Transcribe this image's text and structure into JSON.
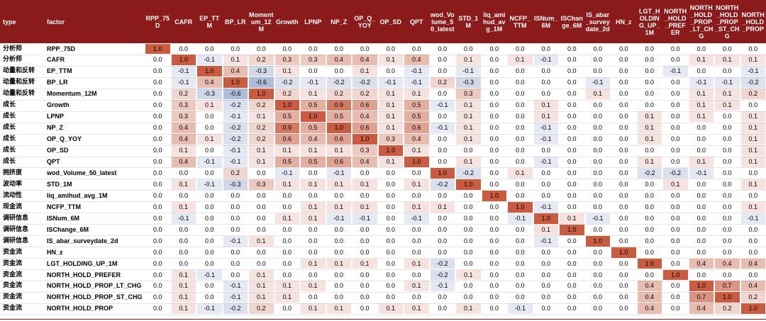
{
  "chart_data": {
    "type": "heatmap",
    "title": "",
    "header": {
      "type_label": "type",
      "factor_label": "factor"
    },
    "columns": [
      "RPP_75D",
      "CAFR",
      "EP_TTM",
      "BP_LR",
      "Momentum_12M",
      "Growth",
      "LPNP",
      "NP_Z",
      "OP_Q_YOY",
      "OP_SD",
      "QPT",
      "wod_Volume_50_latest",
      "STD_1M",
      "liq_amihud_avg_1M",
      "NCFP_TTM",
      "ISNum_6M",
      "ISChange_6M",
      "IS_abar_surveydate_2d",
      "HN_z",
      "LGT_HOLDING_UP_1M",
      "NORTH_HOLD_PREFER",
      "NORTH_HOLD_PROP_LT_CHG",
      "NORTH_HOLD_PROP_ST_CHG",
      "NORTH_HOLD_PROP"
    ],
    "rows": [
      {
        "type": "分析师",
        "factor": "RPP_75D",
        "values": [
          "1.0",
          "0.0",
          "0.0",
          "0.0",
          "0.0",
          "0.0",
          "0.0",
          "0.0",
          "0.0",
          "0.0",
          "0.0",
          "0.0",
          "0.0",
          "0.0",
          "0.0",
          "0.0",
          "0.0",
          "0.0",
          "0.0",
          "0.0",
          "0.0",
          "0.0",
          "0.0",
          "0.0"
        ]
      },
      {
        "type": "分析师",
        "factor": "CAFR",
        "values": [
          "0.0",
          "1.0",
          "-0.1",
          "0.1",
          "0.2",
          "0.3",
          "0.3",
          "0.4",
          "0.4",
          "0.1",
          "0.4",
          "0.0",
          "0.1",
          "0.0",
          "0.1",
          "-0.1",
          "0.0",
          "0.0",
          "0.0",
          "0.0",
          "0.0",
          "0.1",
          "0.1",
          "0.1"
        ]
      },
      {
        "type": "动量和反转",
        "factor": "EP_TTM",
        "values": [
          "0.0",
          "-0.1",
          "1.0",
          "0.4",
          "-0.3",
          "0.1",
          "0.0",
          "0.0",
          "0.1",
          "0.0",
          "-0.1",
          "0.0",
          "-0.1",
          "0.0",
          "0.0",
          "0.0",
          "0.0",
          "0.0",
          "0.0",
          "0.0",
          "-0.1",
          "0.0",
          "0.0",
          "-0.1"
        ]
      },
      {
        "type": "动量和反转",
        "factor": "BP_LR",
        "values": [
          "0.0",
          "-0.1",
          "0.4",
          "1.0",
          "-0.6",
          "-0.2",
          "-0.1",
          "-0.2",
          "-0.2",
          "-0.1",
          "-0.1",
          "0.2",
          "-0.3",
          "0.0",
          "0.0",
          "0.0",
          "0.0",
          "-0.1",
          "0.0",
          "0.0",
          "0.0",
          "-0.1",
          "-0.1",
          "-0.2"
        ]
      },
      {
        "type": "动量和反转",
        "factor": "Momentum_12M",
        "values": [
          "0.0",
          "0.2",
          "-0.3",
          "-0.6",
          "1.0",
          "0.2",
          "0.1",
          "0.2",
          "0.2",
          "0.1",
          "0.1",
          "0.0",
          "0.3",
          "0.0",
          "0.0",
          "0.0",
          "0.0",
          "0.1",
          "0.0",
          "0.0",
          "0.0",
          "0.1",
          "0.1",
          "0.2"
        ]
      },
      {
        "type": "成长",
        "factor": "Growth",
        "values": [
          "0.0",
          "0.3",
          "0.1",
          "-0.2",
          "0.2",
          "1.0",
          "0.5",
          "0.9",
          "0.6",
          "0.1",
          "0.5",
          "-0.1",
          "0.1",
          "0.0",
          "0.0",
          "0.1",
          "0.0",
          "0.0",
          "0.0",
          "0.0",
          "0.0",
          "0.1",
          "0.1",
          "0.0"
        ]
      },
      {
        "type": "成长",
        "factor": "LPNP",
        "values": [
          "0.0",
          "0.3",
          "0.0",
          "-0.1",
          "0.1",
          "0.5",
          "1.0",
          "0.5",
          "0.4",
          "0.1",
          "0.5",
          "0.0",
          "0.1",
          "0.0",
          "0.0",
          "0.1",
          "0.0",
          "0.0",
          "0.0",
          "0.1",
          "0.0",
          "0.1",
          "0.0",
          "0.1"
        ]
      },
      {
        "type": "成长",
        "factor": "NP_Z",
        "values": [
          "0.0",
          "0.4",
          "0.0",
          "-0.2",
          "0.2",
          "0.9",
          "0.5",
          "1.0",
          "0.6",
          "0.1",
          "0.6",
          "-0.1",
          "0.1",
          "0.0",
          "0.0",
          "-0.1",
          "0.0",
          "0.0",
          "0.0",
          "0.1",
          "0.0",
          "0.0",
          "0.0",
          "0.1"
        ]
      },
      {
        "type": "成长",
        "factor": "OP_Q_YOY",
        "values": [
          "0.0",
          "0.4",
          "0.1",
          "-0.2",
          "0.2",
          "0.6",
          "0.4",
          "0.6",
          "1.0",
          "0.3",
          "0.4",
          "0.0",
          "0.1",
          "0.0",
          "0.0",
          "-0.1",
          "0.0",
          "0.0",
          "0.0",
          "0.1",
          "0.0",
          "0.0",
          "0.0",
          "0.1"
        ]
      },
      {
        "type": "成长",
        "factor": "OP_SD",
        "values": [
          "0.0",
          "0.1",
          "0.0",
          "-0.1",
          "0.1",
          "0.1",
          "0.1",
          "0.1",
          "0.3",
          "1.0",
          "0.1",
          "0.0",
          "0.0",
          "0.0",
          "0.0",
          "0.0",
          "0.0",
          "0.0",
          "0.0",
          "0.0",
          "0.0",
          "0.0",
          "0.0",
          "0.1"
        ]
      },
      {
        "type": "成长",
        "factor": "QPT",
        "values": [
          "0.0",
          "0.4",
          "-0.1",
          "-0.1",
          "0.1",
          "0.5",
          "0.5",
          "0.6",
          "0.4",
          "0.1",
          "1.0",
          "0.0",
          "0.1",
          "0.0",
          "0.0",
          "-0.1",
          "0.0",
          "0.0",
          "0.0",
          "0.1",
          "0.0",
          "0.1",
          "0.0",
          "0.1"
        ]
      },
      {
        "type": "拥挤度",
        "factor": "wod_Volume_50_latest",
        "values": [
          "0.0",
          "0.0",
          "0.0",
          "0.2",
          "0.0",
          "-0.1",
          "0.0",
          "-0.1",
          "0.0",
          "0.0",
          "0.0",
          "1.0",
          "-0.2",
          "0.0",
          "0.1",
          "0.0",
          "0.0",
          "0.0",
          "0.0",
          "-0.2",
          "-0.2",
          "-0.1",
          "0.0",
          "0.0"
        ]
      },
      {
        "type": "波动率",
        "factor": "STD_1M",
        "values": [
          "0.0",
          "0.1",
          "-0.1",
          "-0.3",
          "0.3",
          "0.1",
          "0.1",
          "0.1",
          "0.1",
          "0.0",
          "0.1",
          "-0.2",
          "1.0",
          "0.0",
          "0.0",
          "0.0",
          "0.0",
          "0.0",
          "0.0",
          "0.0",
          "0.1",
          "0.0",
          "0.0",
          "0.1"
        ]
      },
      {
        "type": "流动性",
        "factor": "liq_amihud_avg_1M",
        "values": [
          "0.0",
          "0.0",
          "0.0",
          "0.0",
          "0.0",
          "0.0",
          "0.0",
          "0.0",
          "0.0",
          "0.0",
          "0.0",
          "0.0",
          "0.0",
          "1.0",
          "0.0",
          "0.0",
          "0.0",
          "0.0",
          "0.0",
          "0.0",
          "0.0",
          "0.0",
          "0.0",
          "0.0"
        ]
      },
      {
        "type": "现金流",
        "factor": "NCFP_TTM",
        "values": [
          "0.0",
          "0.1",
          "0.0",
          "0.0",
          "0.0",
          "0.0",
          "0.1",
          "0.1",
          "0.1",
          "0.0",
          "0.1",
          "0.1",
          "0.0",
          "0.0",
          "1.0",
          "-0.1",
          "0.0",
          "0.0",
          "0.0",
          "0.0",
          "0.0",
          "0.0",
          "0.0",
          "0.1"
        ]
      },
      {
        "type": "调研信息",
        "factor": "ISNum_6M",
        "values": [
          "0.0",
          "-0.1",
          "0.0",
          "0.0",
          "0.0",
          "0.1",
          "0.1",
          "-0.1",
          "-0.1",
          "0.0",
          "-0.1",
          "0.0",
          "0.0",
          "0.0",
          "-0.1",
          "1.0",
          "0.1",
          "-0.1",
          "0.0",
          "0.0",
          "0.0",
          "0.0",
          "0.0",
          "-0.1"
        ]
      },
      {
        "type": "调研信息",
        "factor": "ISChange_6M",
        "values": [
          "0.0",
          "0.0",
          "0.0",
          "0.0",
          "0.0",
          "0.0",
          "0.0",
          "0.0",
          "0.0",
          "0.0",
          "0.0",
          "0.0",
          "0.0",
          "0.0",
          "0.0",
          "0.1",
          "1.0",
          "0.0",
          "0.0",
          "0.0",
          "0.0",
          "0.0",
          "0.0",
          "0.0"
        ]
      },
      {
        "type": "调研信息",
        "factor": "IS_abar_surveydate_2d",
        "values": [
          "0.0",
          "0.0",
          "0.0",
          "-0.1",
          "0.1",
          "0.0",
          "0.0",
          "0.0",
          "0.0",
          "0.0",
          "0.0",
          "0.0",
          "0.0",
          "0.0",
          "0.0",
          "-0.1",
          "0.0",
          "1.0",
          "0.0",
          "0.0",
          "0.0",
          "0.0",
          "0.0",
          "0.0"
        ]
      },
      {
        "type": "资金流",
        "factor": "HN_z",
        "values": [
          "0.0",
          "0.0",
          "0.0",
          "0.0",
          "0.0",
          "0.0",
          "0.0",
          "0.0",
          "0.0",
          "0.0",
          "0.0",
          "0.0",
          "0.0",
          "0.0",
          "0.0",
          "0.0",
          "0.0",
          "0.0",
          "1.0",
          "0.0",
          "0.0",
          "0.0",
          "0.0",
          "0.0"
        ]
      },
      {
        "type": "资金流",
        "factor": "LGT_HOLDING_UP_1M",
        "values": [
          "0.0",
          "0.0",
          "0.0",
          "0.0",
          "0.0",
          "0.0",
          "0.1",
          "0.1",
          "0.1",
          "0.0",
          "0.1",
          "-0.2",
          "0.0",
          "0.0",
          "0.0",
          "0.0",
          "0.0",
          "0.0",
          "0.0",
          "1.0",
          "0.0",
          "0.4",
          "0.4",
          "0.4"
        ]
      },
      {
        "type": "资金流",
        "factor": "NORTH_HOLD_PREFER",
        "values": [
          "0.0",
          "0.1",
          "-0.1",
          "0.0",
          "0.1",
          "0.0",
          "0.0",
          "0.0",
          "0.0",
          "0.0",
          "0.0",
          "-0.2",
          "0.1",
          "0.0",
          "0.0",
          "0.0",
          "0.0",
          "0.0",
          "0.0",
          "0.0",
          "1.0",
          "0.0",
          "0.0",
          "0.0"
        ]
      },
      {
        "type": "资金流",
        "factor": "NORTH_HOLD_PROP_LT_CHG",
        "values": [
          "0.0",
          "0.1",
          "0.0",
          "-0.1",
          "0.1",
          "0.1",
          "0.1",
          "0.0",
          "0.0",
          "0.0",
          "0.1",
          "-0.1",
          "0.0",
          "0.0",
          "0.0",
          "0.0",
          "0.0",
          "0.0",
          "0.0",
          "0.4",
          "0.0",
          "1.0",
          "0.7",
          "0.4"
        ]
      },
      {
        "type": "资金流",
        "factor": "NORTH_HOLD_PROP_ST_CHG",
        "values": [
          "0.0",
          "0.1",
          "0.0",
          "-0.1",
          "0.1",
          "0.1",
          "0.0",
          "0.0",
          "0.0",
          "0.0",
          "0.0",
          "0.0",
          "0.0",
          "0.0",
          "0.0",
          "0.0",
          "0.0",
          "0.0",
          "0.0",
          "0.4",
          "0.0",
          "0.7",
          "1.0",
          "0.2"
        ]
      },
      {
        "type": "资金流",
        "factor": "NORTH_HOLD_PROP",
        "values": [
          "0.0",
          "0.1",
          "-0.1",
          "-0.2",
          "0.2",
          "0.0",
          "0.1",
          "0.1",
          "0.0",
          "0.1",
          "0.1",
          "0.0",
          "0.1",
          "0.0",
          "-0.1",
          "0.0",
          "0.0",
          "0.0",
          "0.0",
          "0.4",
          "0.0",
          "0.4",
          "0.2",
          "1.0"
        ]
      }
    ]
  },
  "colors": {
    "header_bg": "#8b1a1a",
    "header_text": "#ffffff",
    "positive": "#b5432a",
    "negative": "#3a5a9b",
    "grid_line": "#e6e6e6"
  }
}
